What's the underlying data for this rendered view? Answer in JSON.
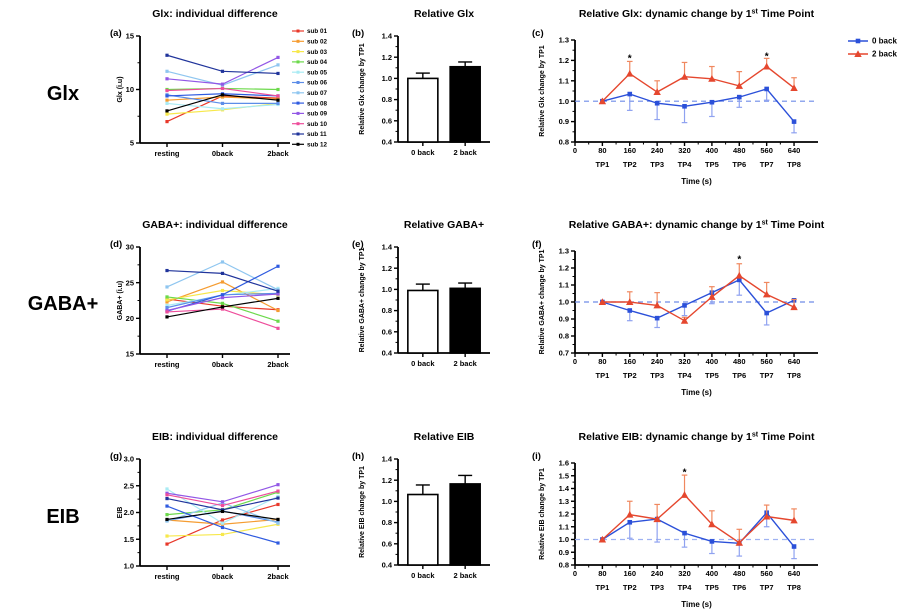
{
  "figure": {
    "row_labels": [
      "Glx",
      "GABA+",
      "EIB"
    ]
  },
  "colors": {
    "task_blue": "#2B50D9",
    "task_blue_err": "#8FA2F0",
    "task_red": "#E5472E",
    "task_red_err": "#F0885F",
    "axis": "#000000"
  },
  "chart_data": [
    {
      "id": "a",
      "panel": "(a)",
      "type": "line",
      "title": "Glx: individual difference",
      "ylabel": "Glx (i.u)",
      "ylim": [
        5,
        15
      ],
      "yticks": [
        "5",
        "10",
        "15"
      ],
      "categories": [
        "resting",
        "0back",
        "2back"
      ],
      "legend": "subjects",
      "series": [
        {
          "name": "sub 01",
          "color": "#E8382A",
          "values": [
            7.0,
            9.4,
            9.2
          ]
        },
        {
          "name": "sub 02",
          "color": "#F59C31",
          "values": [
            9.0,
            9.3,
            9.1
          ]
        },
        {
          "name": "sub 03",
          "color": "#F7E84B",
          "values": [
            7.7,
            8.1,
            8.7
          ]
        },
        {
          "name": "sub 04",
          "color": "#6CD94B",
          "values": [
            10.0,
            10.1,
            10.0
          ]
        },
        {
          "name": "sub 05",
          "color": "#A9EBF4",
          "values": [
            8.7,
            8.2,
            8.6
          ]
        },
        {
          "name": "sub 06",
          "color": "#5C8DE8",
          "values": [
            9.5,
            8.7,
            8.7
          ]
        },
        {
          "name": "sub 07",
          "color": "#8FC6F0",
          "values": [
            11.7,
            10.4,
            12.3
          ]
        },
        {
          "name": "sub 08",
          "color": "#2F5BE0",
          "values": [
            9.4,
            9.6,
            9.4
          ]
        },
        {
          "name": "sub 09",
          "color": "#9257E6",
          "values": [
            11.0,
            10.5,
            13.0
          ]
        },
        {
          "name": "sub 10",
          "color": "#EE4D9B",
          "values": [
            9.9,
            10.1,
            9.4
          ]
        },
        {
          "name": "sub 11",
          "color": "#20349B",
          "values": [
            13.2,
            11.7,
            11.5
          ]
        },
        {
          "name": "sub 12",
          "color": "#000000",
          "values": [
            8.0,
            9.5,
            9.0
          ]
        }
      ]
    },
    {
      "id": "b",
      "panel": "(b)",
      "type": "bar",
      "title": "Relative Glx",
      "ylabel": "Relative Glx change by TP1",
      "ylim": [
        0.4,
        1.4
      ],
      "yticks": [
        "0.4",
        "0.6",
        "0.8",
        "1.0",
        "1.2",
        "1.4"
      ],
      "categories": [
        "0 back",
        "2 back"
      ],
      "values": [
        1.0,
        1.11
      ],
      "errors": [
        0.05,
        0.045
      ],
      "bar_fills": [
        "#ffffff",
        "#000000"
      ]
    },
    {
      "id": "c",
      "panel": "(c)",
      "type": "timeline",
      "title_parts": {
        "pre": "Relative Glx: dynamic change by 1",
        "sup": "st",
        "post": " Time Point"
      },
      "ylabel": "Relative Glx change by TP1",
      "xlabel": "Time (s)",
      "ylim": [
        0.8,
        1.3
      ],
      "yticks": [
        "0.8",
        "0.9",
        "1.0",
        "1.1",
        "1.2",
        "1.3"
      ],
      "xticks": [
        "0",
        "80",
        "160",
        "240",
        "320",
        "400",
        "480",
        "560",
        "640"
      ],
      "tp_labels": [
        "TP1",
        "TP2",
        "TP3",
        "TP4",
        "TP5",
        "TP6",
        "TP7",
        "TP8"
      ],
      "xmax": 710,
      "ref_y": 1.0,
      "ref_color": "#6F8CE8",
      "show_legend": true,
      "legend_items": [
        {
          "label": "0 back"
        },
        {
          "label": "2 back"
        }
      ],
      "series": [
        {
          "name": "0 back",
          "color": "#2B50D9",
          "err_color": "#8FA2F0",
          "marker": "square",
          "err_dir": "down",
          "values": [
            1.0,
            1.035,
            0.99,
            0.975,
            0.995,
            1.02,
            1.06,
            0.9
          ],
          "errors": [
            0,
            0.08,
            0.08,
            0.08,
            0.07,
            0.05,
            0.055,
            0.055
          ]
        },
        {
          "name": "2 back",
          "color": "#E5472E",
          "err_color": "#F0885F",
          "marker": "triangle",
          "err_dir": "up",
          "values": [
            1.0,
            1.135,
            1.045,
            1.12,
            1.11,
            1.075,
            1.17,
            1.065
          ],
          "errors": [
            0,
            0.06,
            0.055,
            0.07,
            0.06,
            0.07,
            0.04,
            0.05
          ]
        }
      ],
      "asterisks": [
        {
          "x": 160,
          "y": 1.215
        },
        {
          "x": 560,
          "y": 1.225
        }
      ]
    },
    {
      "id": "d",
      "panel": "(d)",
      "type": "line",
      "title": "GABA+: individual difference",
      "ylabel": "GABA+ (i.u)",
      "ylim": [
        15,
        30
      ],
      "yticks": [
        "15",
        "20",
        "25",
        "30"
      ],
      "categories": [
        "resting",
        "0back",
        "2back"
      ],
      "series": [
        {
          "name": "sub 01",
          "color": "#E8382A",
          "values": [
            22.7,
            21.7,
            21.2
          ]
        },
        {
          "name": "sub 02",
          "color": "#F59C31",
          "values": [
            22.3,
            25.1,
            21.1
          ]
        },
        {
          "name": "sub 03",
          "color": "#F7E84B",
          "values": [
            22.6,
            23.9,
            23.3
          ]
        },
        {
          "name": "sub 04",
          "color": "#6CD94B",
          "values": [
            23.0,
            22.1,
            19.6
          ]
        },
        {
          "name": "sub 05",
          "color": "#A9EBF4",
          "values": [
            21.8,
            23.2,
            24.2
          ]
        },
        {
          "name": "sub 06",
          "color": "#5C8DE8",
          "values": [
            21.5,
            23.3,
            23.5
          ]
        },
        {
          "name": "sub 07",
          "color": "#8FC6F0",
          "values": [
            24.4,
            27.9,
            24.0
          ]
        },
        {
          "name": "sub 08",
          "color": "#2F5BE0",
          "values": [
            21.0,
            23.3,
            27.3
          ]
        },
        {
          "name": "sub 09",
          "color": "#9257E6",
          "values": [
            21.1,
            22.9,
            23.4
          ]
        },
        {
          "name": "sub 10",
          "color": "#EE4D9B",
          "values": [
            20.9,
            21.3,
            18.6
          ]
        },
        {
          "name": "sub 11",
          "color": "#20349B",
          "values": [
            26.7,
            26.3,
            23.8
          ]
        },
        {
          "name": "sub 12",
          "color": "#000000",
          "values": [
            20.2,
            21.6,
            22.8
          ]
        }
      ]
    },
    {
      "id": "e",
      "panel": "(e)",
      "type": "bar",
      "title": "Relative GABA+",
      "ylabel": "Relative GABA+ change by TP1",
      "ylim": [
        0.4,
        1.4
      ],
      "yticks": [
        "0.4",
        "0.6",
        "0.8",
        "1.0",
        "1.2",
        "1.4"
      ],
      "categories": [
        "0 back",
        "2 back"
      ],
      "values": [
        0.99,
        1.01
      ],
      "errors": [
        0.06,
        0.05
      ],
      "bar_fills": [
        "#ffffff",
        "#000000"
      ]
    },
    {
      "id": "f",
      "panel": "(f)",
      "type": "timeline",
      "title_parts": {
        "pre": "Relative GABA+: dynamic change by 1",
        "sup": "st",
        "post": " Time Point"
      },
      "ylabel": "Relative GABA+ change by TP1",
      "xlabel": "Time (s)",
      "ylim": [
        0.7,
        1.3
      ],
      "yticks": [
        "0.7",
        "0.8",
        "0.9",
        "1.0",
        "1.1",
        "1.2",
        "1.3"
      ],
      "xticks": [
        "0",
        "80",
        "160",
        "240",
        "320",
        "400",
        "480",
        "560",
        "640"
      ],
      "tp_labels": [
        "TP1",
        "TP2",
        "TP3",
        "TP4",
        "TP5",
        "TP6",
        "TP7",
        "TP8"
      ],
      "xmax": 710,
      "ref_y": 1.0,
      "ref_color": "#6F8CE8",
      "show_legend": false,
      "series": [
        {
          "name": "0 back",
          "color": "#2B50D9",
          "err_color": "#8FA2F0",
          "marker": "square",
          "err_dir": "down",
          "values": [
            1.0,
            0.95,
            0.905,
            0.98,
            1.055,
            1.13,
            0.935,
            1.01
          ],
          "errors": [
            0,
            0.06,
            0.055,
            0.06,
            0.065,
            0.09,
            0.07,
            0.045
          ]
        },
        {
          "name": "2 back",
          "color": "#E5472E",
          "err_color": "#F0885F",
          "marker": "triangle",
          "err_dir": "up",
          "values": [
            1.0,
            1.0,
            0.98,
            0.89,
            1.03,
            1.155,
            1.045,
            0.97
          ],
          "errors": [
            0,
            0.06,
            0.075,
            0.02,
            0.06,
            0.07,
            0.07,
            0.045
          ]
        }
      ],
      "asterisks": [
        {
          "x": 480,
          "y": 1.255
        }
      ]
    },
    {
      "id": "g",
      "panel": "(g)",
      "type": "line",
      "title": "EIB: individual difference",
      "ylabel": "EIB",
      "ylim": [
        1.0,
        3.0
      ],
      "yticks": [
        "1.0",
        "1.5",
        "2.0",
        "2.5",
        "3.0"
      ],
      "categories": [
        "resting",
        "0back",
        "2back"
      ],
      "series": [
        {
          "name": "sub 01",
          "color": "#E8382A",
          "values": [
            1.41,
            1.86,
            2.15
          ]
        },
        {
          "name": "sub 02",
          "color": "#F59C31",
          "values": [
            1.86,
            1.78,
            1.87
          ]
        },
        {
          "name": "sub 03",
          "color": "#F7E84B",
          "values": [
            1.56,
            1.59,
            1.78
          ]
        },
        {
          "name": "sub 04",
          "color": "#6CD94B",
          "values": [
            1.96,
            2.05,
            2.38
          ]
        },
        {
          "name": "sub 05",
          "color": "#A9EBF4",
          "values": [
            2.44,
            1.8,
            2.3
          ]
        },
        {
          "name": "sub 06",
          "color": "#5C8DE8",
          "values": [
            1.85,
            2.03,
            1.82
          ]
        },
        {
          "name": "sub 07",
          "color": "#8FC6F0",
          "values": [
            1.84,
            2.18,
            1.8
          ]
        },
        {
          "name": "sub 08",
          "color": "#2F5BE0",
          "values": [
            2.12,
            1.72,
            1.43
          ]
        },
        {
          "name": "sub 09",
          "color": "#9257E6",
          "values": [
            2.36,
            2.2,
            2.52
          ]
        },
        {
          "name": "sub 10",
          "color": "#EE4D9B",
          "values": [
            2.33,
            2.13,
            2.4
          ]
        },
        {
          "name": "sub 11",
          "color": "#20349B",
          "values": [
            2.26,
            2.05,
            2.27
          ]
        },
        {
          "name": "sub 12",
          "color": "#000000",
          "values": [
            1.87,
            2.02,
            1.87
          ]
        }
      ]
    },
    {
      "id": "h",
      "panel": "(h)",
      "type": "bar",
      "title": "Relative EIB",
      "ylabel": "Relative EIB change by TP1",
      "ylim": [
        0.4,
        1.4
      ],
      "yticks": [
        "0.4",
        "0.6",
        "0.8",
        "1.0",
        "1.2",
        "1.4"
      ],
      "categories": [
        "0 back",
        "2 back"
      ],
      "values": [
        1.065,
        1.165
      ],
      "errors": [
        0.09,
        0.08
      ],
      "bar_fills": [
        "#ffffff",
        "#000000"
      ]
    },
    {
      "id": "i",
      "panel": "(i)",
      "type": "timeline",
      "title_parts": {
        "pre": "Relative EIB: dynamic change by 1",
        "sup": "st",
        "post": " Time Point"
      },
      "ylabel": "Relative EIB change by TP1",
      "xlabel": "Time (s)",
      "ylim": [
        0.8,
        1.6
      ],
      "yticks": [
        "0.8",
        "0.9",
        "1.0",
        "1.1",
        "1.2",
        "1.3",
        "1.4",
        "1.5",
        "1.6"
      ],
      "xticks": [
        "0",
        "80",
        "160",
        "240",
        "320",
        "400",
        "480",
        "560",
        "640"
      ],
      "tp_labels": [
        "TP1",
        "TP2",
        "TP3",
        "TP4",
        "TP5",
        "TP6",
        "TP7",
        "TP8"
      ],
      "xmax": 710,
      "ref_y": 1.0,
      "ref_color": "#9FB2F2",
      "show_legend": false,
      "series": [
        {
          "name": "0 back",
          "color": "#2B50D9",
          "err_color": "#8FA2F0",
          "marker": "square",
          "err_dir": "down",
          "values": [
            1.0,
            1.135,
            1.16,
            1.05,
            0.985,
            0.97,
            1.21,
            0.945
          ],
          "errors": [
            0,
            0.125,
            0.18,
            0.11,
            0.095,
            0.1,
            0.11,
            0.095
          ]
        },
        {
          "name": "2 back",
          "color": "#E5472E",
          "err_color": "#F0885F",
          "marker": "triangle",
          "err_dir": "up",
          "values": [
            1.0,
            1.195,
            1.16,
            1.35,
            1.12,
            0.975,
            1.18,
            1.15
          ],
          "errors": [
            0,
            0.105,
            0.115,
            0.155,
            0.105,
            0.105,
            0.09,
            0.09
          ]
        }
      ],
      "asterisks": [
        {
          "x": 320,
          "y": 1.535
        }
      ]
    }
  ]
}
